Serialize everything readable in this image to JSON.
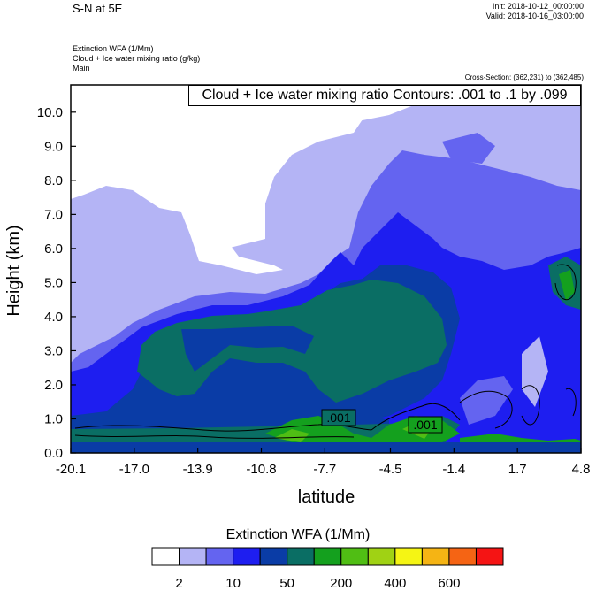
{
  "header": {
    "title": "S-N at 5E",
    "init": "Init: 2018-10-12_00:00:00",
    "valid": "Valid: 2018-10-16_03:00:00",
    "field1": "Extinction WFA   (1/Mm)",
    "field2": "Cloud + Ice water mixing ratio   (g/kg)",
    "field3": "Main",
    "cross_section": "Cross-Section: (362,231) to (362,485)"
  },
  "contour_info": "Cloud + Ice water mixing ratio Contours: .001 to .1 by .099",
  "contour_labels": [
    ".001",
    ".001"
  ],
  "chart_data": {
    "type": "heatmap",
    "xlabel": "latitude",
    "ylabel": "Height (km)",
    "x_ticks": [
      "-20.1",
      "-17.0",
      "-13.9",
      "-10.8",
      "-7.7",
      "-4.5",
      "-1.4",
      "1.7",
      "4.8"
    ],
    "y_ticks": [
      "0.0",
      "1.0",
      "2.0",
      "3.0",
      "4.0",
      "5.0",
      "6.0",
      "7.0",
      "8.0",
      "9.0",
      "10.0"
    ],
    "xlim": [
      -20.1,
      4.8
    ],
    "ylim": [
      0,
      10.8
    ],
    "colorbar": {
      "title": "Extinction WFA  (1/Mm)",
      "labels": [
        "2",
        "10",
        "50",
        "200",
        "400",
        "600"
      ],
      "colors": [
        "#ffffff",
        "#b4b4f5",
        "#6464f0",
        "#1e1ef0",
        "#0a3ca6",
        "#0a6e64",
        "#14a01e",
        "#50be14",
        "#a0d214",
        "#f5f514",
        "#f5b414",
        "#f56414",
        "#f51414"
      ]
    },
    "contour_levels": [
      0.001,
      0.1
    ]
  }
}
